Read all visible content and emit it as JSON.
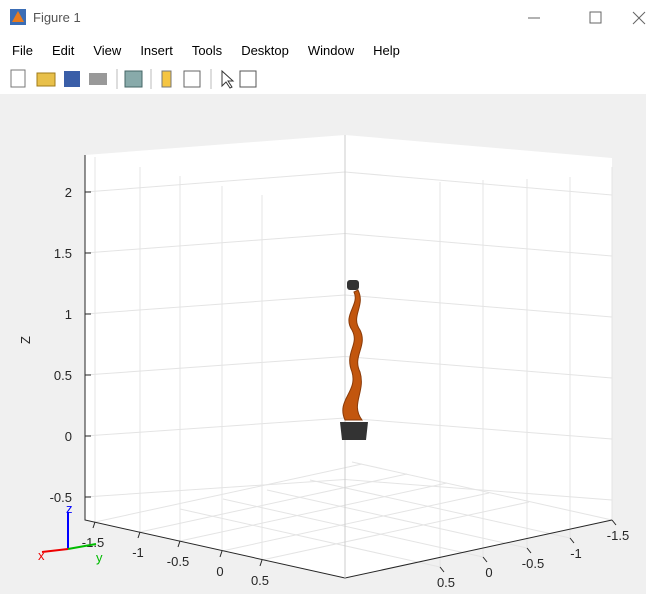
{
  "window": {
    "title": "Figure 1"
  },
  "menu": [
    "File",
    "Edit",
    "View",
    "Insert",
    "Tools",
    "Desktop",
    "Window",
    "Help"
  ],
  "axes": {
    "zlabel": "Z",
    "zticks": [
      "2",
      "1.5",
      "1",
      "0.5",
      "0",
      "-0.5"
    ],
    "xticks": [
      "-1.5",
      "-1",
      "-0.5",
      "0",
      "0.5"
    ],
    "yticks": [
      "0.5",
      "0",
      "-0.5",
      "-1",
      "-1.5"
    ]
  },
  "triad": {
    "x": "x",
    "y": "y",
    "z": "z"
  }
}
